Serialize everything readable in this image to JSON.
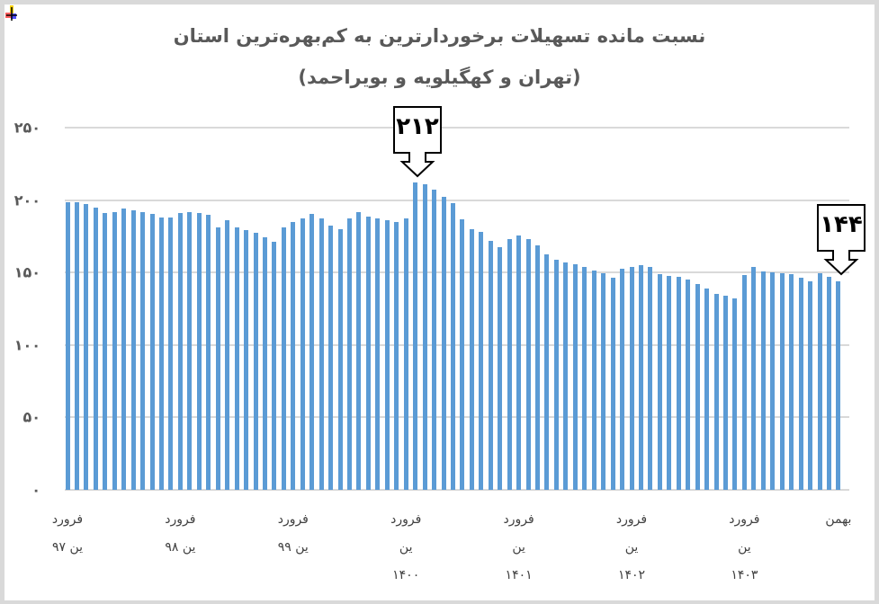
{
  "chart_data": {
    "type": "bar",
    "title": "نسبت مانده تسهیلات برخوردارترین به کم‌بهره‌ترین استان",
    "subtitle": "(تهران و کهگیلویه و بویراحمد)",
    "xlabel": "",
    "ylabel": "",
    "ylim": [
      0,
      250
    ],
    "yticks": [
      0,
      50,
      100,
      150,
      200,
      250
    ],
    "ytick_labels": [
      "۰",
      "۵۰",
      "۱۰۰",
      "۱۵۰",
      "۲۰۰",
      "۲۵۰"
    ],
    "grid": true,
    "legend": null,
    "bar_color": "#5b9bd5",
    "x_tick_labels": [
      {
        "index": 0,
        "lines": [
          "فرورد",
          "ین ۹۷"
        ]
      },
      {
        "index": 12,
        "lines": [
          "فرورد",
          "ین ۹۸"
        ]
      },
      {
        "index": 24,
        "lines": [
          "فرورد",
          "ین ۹۹"
        ]
      },
      {
        "index": 36,
        "lines": [
          "فرورد",
          "ین",
          "۱۴۰۰"
        ]
      },
      {
        "index": 48,
        "lines": [
          "فرورد",
          "ین",
          "۱۴۰۱"
        ]
      },
      {
        "index": 60,
        "lines": [
          "فرورد",
          "ین",
          "۱۴۰۲"
        ]
      },
      {
        "index": 72,
        "lines": [
          "فرورد",
          "ین",
          "۱۴۰۳"
        ]
      },
      {
        "index": 82,
        "lines": [
          "بهمن"
        ]
      }
    ],
    "values": [
      198.5,
      198.5,
      197.3,
      194.8,
      191.1,
      191.7,
      194.2,
      192.9,
      191.7,
      190.4,
      188.0,
      188.0,
      191.1,
      191.7,
      191.1,
      189.8,
      181.1,
      186.1,
      181.1,
      179.3,
      177.4,
      174.3,
      171.2,
      181.1,
      184.9,
      187.3,
      190.4,
      187.3,
      182.4,
      179.9,
      187.3,
      191.7,
      188.6,
      187.3,
      186.1,
      184.9,
      187.3,
      212,
      211,
      207,
      202,
      198,
      186.7,
      179.9,
      178.0,
      171.8,
      167.5,
      173.1,
      175.6,
      173.1,
      168.7,
      162.5,
      158.8,
      156.9,
      155.6,
      153.8,
      151.4,
      149.5,
      146.4,
      152.6,
      153.8,
      155.1,
      153.8,
      148.9,
      147.6,
      147.0,
      145.2,
      142.1,
      139.0,
      135.2,
      134.0,
      132.1,
      148.3,
      153.8,
      150.7,
      150.1,
      149.5,
      148.9,
      146.4,
      143.9,
      149.5,
      147.0,
      144
    ],
    "annotations": [
      {
        "index": 37,
        "label": "۲۱۲",
        "value": 212
      },
      {
        "index": 82,
        "label": "۱۴۴",
        "value": 144
      }
    ]
  }
}
